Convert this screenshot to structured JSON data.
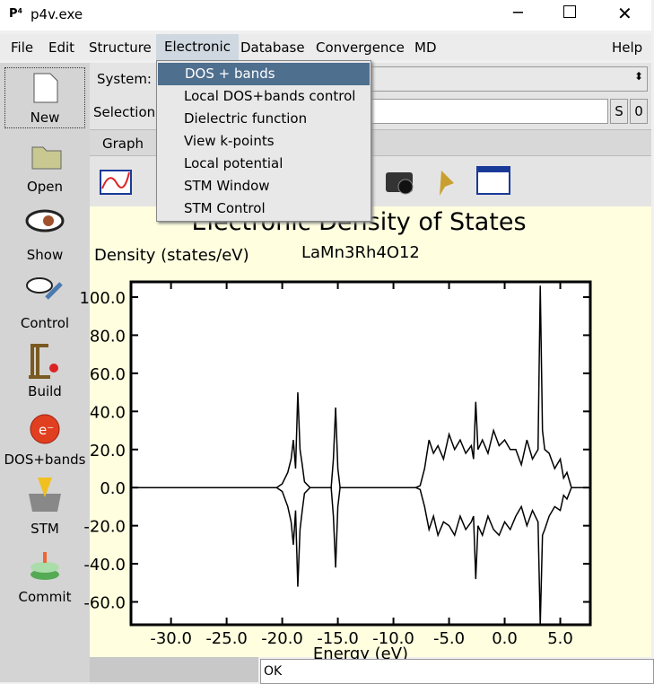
{
  "window": {
    "title": "p4v.exe"
  },
  "menu": {
    "items": [
      "File",
      "Edit",
      "Structure",
      "Electronic",
      "Database",
      "Convergence",
      "MD"
    ],
    "help": "Help"
  },
  "sidebar": {
    "buttons": [
      "New",
      "Open",
      "Show",
      "Control",
      "Build",
      "DOS+bands",
      "STM",
      "Commit"
    ]
  },
  "form": {
    "system_label": "System:",
    "selection_label": "Selection:",
    "s_button": "S",
    "zero_button": "0",
    "tab": "Graph"
  },
  "dropdown": {
    "items": [
      "DOS + bands",
      "Local DOS+bands control",
      "Dielectric function",
      "View k-points",
      "Local potential",
      "STM Window",
      "STM Control"
    ]
  },
  "plot": {
    "type": "line",
    "title": "Electronic Density of States",
    "subtitle": "LaMn3Rh4O12",
    "ylabel": "Density (states/eV)",
    "xlabel": "Energy (eV)",
    "xlim": [
      -33.6,
      7.7
    ],
    "ylim": [
      -72,
      108
    ],
    "xticks": [
      {
        "value": -30,
        "label": "-30.0"
      },
      {
        "value": -25,
        "label": "-25.0"
      },
      {
        "value": -20,
        "label": "-20.0"
      },
      {
        "value": -15,
        "label": "-15.0"
      },
      {
        "value": -10,
        "label": "-10.0"
      },
      {
        "value": -5,
        "label": "-5.0"
      },
      {
        "value": 0,
        "label": "0.0"
      },
      {
        "value": 5,
        "label": "5.0"
      }
    ],
    "yticks": [
      {
        "value": 100,
        "label": "100.0"
      },
      {
        "value": 80,
        "label": "80.0"
      },
      {
        "value": 60,
        "label": "60.0"
      },
      {
        "value": 40,
        "label": "40.0"
      },
      {
        "value": 20,
        "label": "20.0"
      },
      {
        "value": 0,
        "label": "0.0"
      },
      {
        "value": -20,
        "label": "-20.0"
      },
      {
        "value": -40,
        "label": "-40.0"
      },
      {
        "value": -60,
        "label": "-60.0"
      }
    ],
    "x": [
      -33.6,
      -20.5,
      -20,
      -19.5,
      -19.2,
      -19,
      -18.8,
      -18.6,
      -18.4,
      -18.2,
      -18,
      -17.5,
      -15.6,
      -15.4,
      -15.2,
      -15,
      -14.8,
      -8,
      -7.6,
      -7.2,
      -6.8,
      -6.4,
      -6,
      -5.5,
      -5,
      -4.5,
      -4,
      -3.5,
      -3,
      -2.8,
      -2.6,
      -2.4,
      -2,
      -1.5,
      -1,
      -0.5,
      0,
      0.5,
      1,
      1.5,
      2,
      2.5,
      3,
      3.2,
      3.4,
      3.6,
      4,
      4.5,
      5,
      5.3,
      5.6,
      6,
      7.7
    ],
    "series": [
      {
        "color": "#000000",
        "values": [
          0,
          0,
          2,
          8,
          15,
          25,
          10,
          50,
          20,
          12,
          3,
          0,
          0,
          15,
          42,
          10,
          0,
          0,
          1,
          10,
          25,
          18,
          22,
          15,
          28,
          20,
          25,
          18,
          22,
          15,
          45,
          20,
          25,
          18,
          30,
          22,
          25,
          20,
          20,
          12,
          25,
          15,
          20,
          106,
          30,
          20,
          18,
          10,
          15,
          5,
          8,
          0,
          0
        ]
      },
      {
        "color": "#000000",
        "values": [
          0,
          0,
          -2,
          -10,
          -18,
          -30,
          -12,
          -52,
          -22,
          -12,
          -3,
          0,
          0,
          -15,
          -42,
          -10,
          0,
          0,
          -1,
          -10,
          -22,
          -15,
          -25,
          -18,
          -20,
          -25,
          -15,
          -22,
          -18,
          -15,
          -48,
          -20,
          -25,
          -15,
          -22,
          -25,
          -18,
          -22,
          -15,
          -10,
          -20,
          -12,
          -18,
          -72,
          -25,
          -22,
          -15,
          -10,
          -12,
          -4,
          -6,
          0,
          0
        ]
      }
    ]
  },
  "status": "OK"
}
